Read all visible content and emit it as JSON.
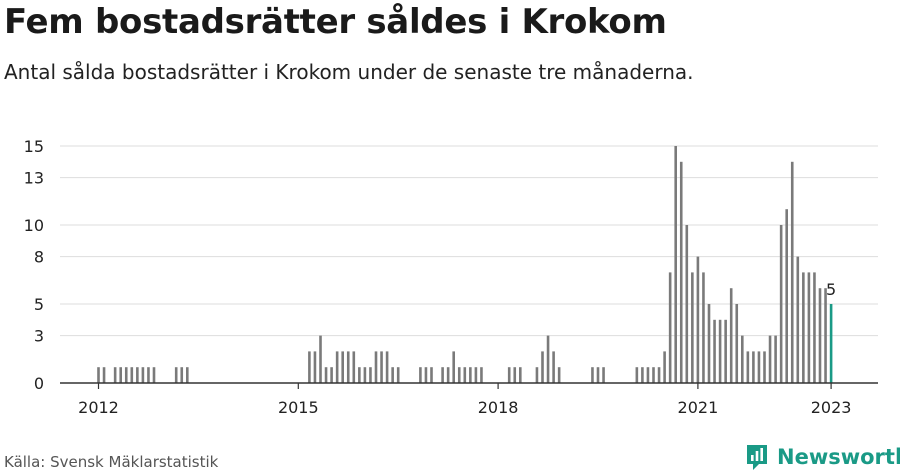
{
  "title": "Fem bostadsrätter såldes i Krokom",
  "subtitle": "Antal sålda bostadsrätter i Krokom under de senaste tre månaderna.",
  "source": "Källa: Svensk Mäklarstatistik",
  "brand": "Newsworthy",
  "colors": {
    "bar": "#7a7a7a",
    "highlight": "#1a9a86",
    "grid": "#dddddd",
    "axis": "#333333"
  },
  "chart_data": {
    "type": "bar",
    "x_label_years": [
      "2012",
      "2015",
      "2018",
      "2021",
      "2023"
    ],
    "y_ticks": [
      "0",
      "3",
      "5",
      "8",
      "10",
      "13",
      "15"
    ],
    "ylim": [
      0,
      15
    ],
    "grid": true,
    "annotation": {
      "label": "5",
      "month": "2023-01",
      "value": 5
    },
    "bars": [
      {
        "month": "2012-01",
        "value": 1
      },
      {
        "month": "2012-02",
        "value": 1
      },
      {
        "month": "2012-04",
        "value": 1
      },
      {
        "month": "2012-05",
        "value": 1
      },
      {
        "month": "2012-06",
        "value": 1
      },
      {
        "month": "2012-07",
        "value": 1
      },
      {
        "month": "2012-08",
        "value": 1
      },
      {
        "month": "2012-09",
        "value": 1
      },
      {
        "month": "2012-10",
        "value": 1
      },
      {
        "month": "2012-11",
        "value": 1
      },
      {
        "month": "2013-03",
        "value": 1
      },
      {
        "month": "2013-04",
        "value": 1
      },
      {
        "month": "2013-05",
        "value": 1
      },
      {
        "month": "2015-03",
        "value": 2
      },
      {
        "month": "2015-04",
        "value": 2
      },
      {
        "month": "2015-05",
        "value": 3
      },
      {
        "month": "2015-06",
        "value": 1
      },
      {
        "month": "2015-07",
        "value": 1
      },
      {
        "month": "2015-08",
        "value": 2
      },
      {
        "month": "2015-09",
        "value": 2
      },
      {
        "month": "2015-10",
        "value": 2
      },
      {
        "month": "2015-11",
        "value": 2
      },
      {
        "month": "2015-12",
        "value": 1
      },
      {
        "month": "2016-01",
        "value": 1
      },
      {
        "month": "2016-02",
        "value": 1
      },
      {
        "month": "2016-03",
        "value": 2
      },
      {
        "month": "2016-04",
        "value": 2
      },
      {
        "month": "2016-05",
        "value": 2
      },
      {
        "month": "2016-06",
        "value": 1
      },
      {
        "month": "2016-07",
        "value": 1
      },
      {
        "month": "2016-11",
        "value": 1
      },
      {
        "month": "2016-12",
        "value": 1
      },
      {
        "month": "2017-01",
        "value": 1
      },
      {
        "month": "2017-03",
        "value": 1
      },
      {
        "month": "2017-04",
        "value": 1
      },
      {
        "month": "2017-05",
        "value": 2
      },
      {
        "month": "2017-06",
        "value": 1
      },
      {
        "month": "2017-07",
        "value": 1
      },
      {
        "month": "2017-08",
        "value": 1
      },
      {
        "month": "2017-09",
        "value": 1
      },
      {
        "month": "2017-10",
        "value": 1
      },
      {
        "month": "2018-03",
        "value": 1
      },
      {
        "month": "2018-04",
        "value": 1
      },
      {
        "month": "2018-05",
        "value": 1
      },
      {
        "month": "2018-08",
        "value": 1
      },
      {
        "month": "2018-09",
        "value": 2
      },
      {
        "month": "2018-10",
        "value": 3
      },
      {
        "month": "2018-11",
        "value": 2
      },
      {
        "month": "2018-12",
        "value": 1
      },
      {
        "month": "2019-06",
        "value": 1
      },
      {
        "month": "2019-07",
        "value": 1
      },
      {
        "month": "2019-08",
        "value": 1
      },
      {
        "month": "2020-02",
        "value": 1
      },
      {
        "month": "2020-03",
        "value": 1
      },
      {
        "month": "2020-04",
        "value": 1
      },
      {
        "month": "2020-05",
        "value": 1
      },
      {
        "month": "2020-06",
        "value": 1
      },
      {
        "month": "2020-07",
        "value": 2
      },
      {
        "month": "2020-08",
        "value": 7
      },
      {
        "month": "2020-09",
        "value": 15
      },
      {
        "month": "2020-10",
        "value": 14
      },
      {
        "month": "2020-11",
        "value": 10
      },
      {
        "month": "2020-12",
        "value": 7
      },
      {
        "month": "2021-01",
        "value": 8
      },
      {
        "month": "2021-02",
        "value": 7
      },
      {
        "month": "2021-03",
        "value": 5
      },
      {
        "month": "2021-04",
        "value": 4
      },
      {
        "month": "2021-05",
        "value": 4
      },
      {
        "month": "2021-06",
        "value": 4
      },
      {
        "month": "2021-07",
        "value": 6
      },
      {
        "month": "2021-08",
        "value": 5
      },
      {
        "month": "2021-09",
        "value": 3
      },
      {
        "month": "2021-10",
        "value": 2
      },
      {
        "month": "2021-11",
        "value": 2
      },
      {
        "month": "2021-12",
        "value": 2
      },
      {
        "month": "2022-01",
        "value": 2
      },
      {
        "month": "2022-02",
        "value": 3
      },
      {
        "month": "2022-03",
        "value": 3
      },
      {
        "month": "2022-04",
        "value": 10
      },
      {
        "month": "2022-05",
        "value": 11
      },
      {
        "month": "2022-06",
        "value": 14
      },
      {
        "month": "2022-07",
        "value": 8
      },
      {
        "month": "2022-08",
        "value": 7
      },
      {
        "month": "2022-09",
        "value": 7
      },
      {
        "month": "2022-10",
        "value": 7
      },
      {
        "month": "2022-11",
        "value": 6
      },
      {
        "month": "2022-12",
        "value": 6
      },
      {
        "month": "2023-01",
        "value": 5,
        "highlight": true
      }
    ]
  }
}
